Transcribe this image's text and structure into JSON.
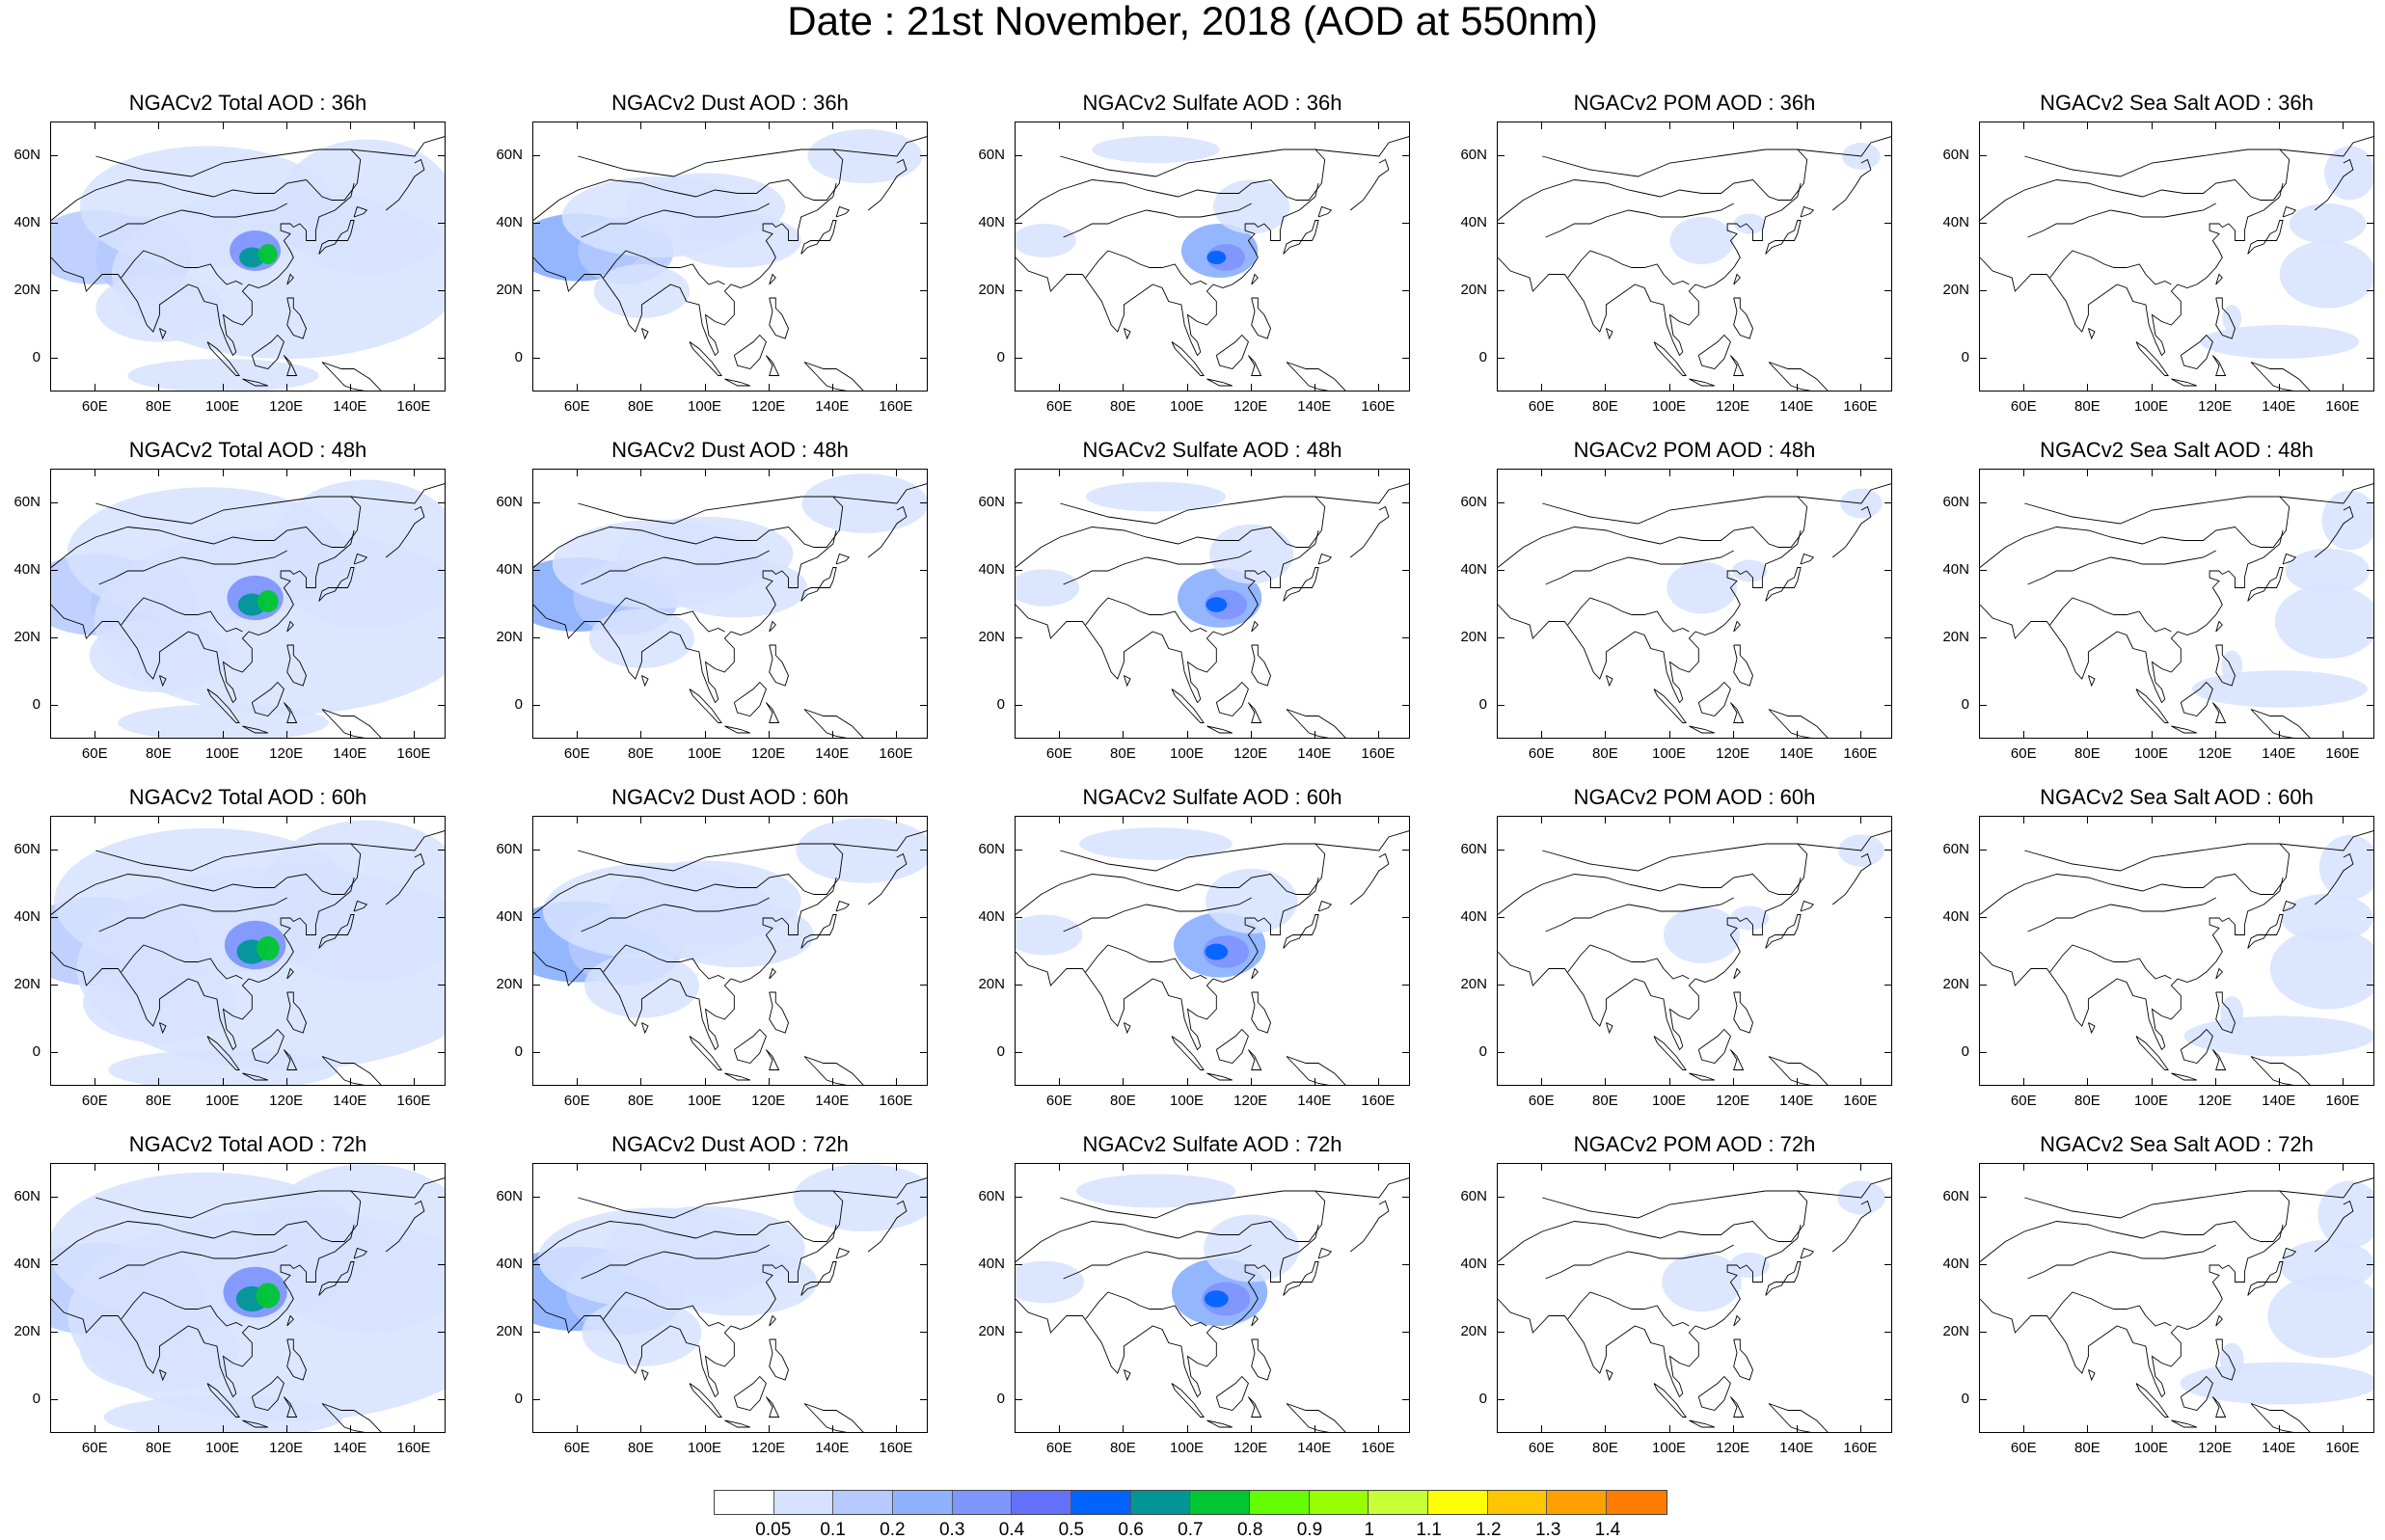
{
  "title": "Date : 21st November, 2018 (AOD at 550nm)",
  "axis": {
    "y_ticks": [
      "60N",
      "40N",
      "20N",
      "0"
    ],
    "x_ticks": [
      "60E",
      "80E",
      "100E",
      "120E",
      "140E",
      "160E"
    ]
  },
  "panels": [
    {
      "title": "NGACv2 Total AOD : 36h",
      "species": "total",
      "hour": 36
    },
    {
      "title": "NGACv2 Dust AOD : 36h",
      "species": "dust",
      "hour": 36
    },
    {
      "title": "NGACv2 Sulfate AOD : 36h",
      "species": "sulfate",
      "hour": 36
    },
    {
      "title": "NGACv2 POM AOD : 36h",
      "species": "pom",
      "hour": 36
    },
    {
      "title": "NGACv2 Sea Salt AOD : 36h",
      "species": "seasalt",
      "hour": 36
    },
    {
      "title": "NGACv2 Total AOD : 48h",
      "species": "total",
      "hour": 48
    },
    {
      "title": "NGACv2 Dust AOD : 48h",
      "species": "dust",
      "hour": 48
    },
    {
      "title": "NGACv2 Sulfate AOD : 48h",
      "species": "sulfate",
      "hour": 48
    },
    {
      "title": "NGACv2 POM AOD : 48h",
      "species": "pom",
      "hour": 48
    },
    {
      "title": "NGACv2 Sea Salt AOD : 48h",
      "species": "seasalt",
      "hour": 48
    },
    {
      "title": "NGACv2 Total AOD : 60h",
      "species": "total",
      "hour": 60
    },
    {
      "title": "NGACv2 Dust AOD : 60h",
      "species": "dust",
      "hour": 60
    },
    {
      "title": "NGACv2 Sulfate AOD : 60h",
      "species": "sulfate",
      "hour": 60
    },
    {
      "title": "NGACv2 POM AOD : 60h",
      "species": "pom",
      "hour": 60
    },
    {
      "title": "NGACv2 Sea Salt AOD : 60h",
      "species": "seasalt",
      "hour": 60
    },
    {
      "title": "NGACv2 Total AOD : 72h",
      "species": "total",
      "hour": 72
    },
    {
      "title": "NGACv2 Dust AOD : 72h",
      "species": "dust",
      "hour": 72
    },
    {
      "title": "NGACv2 Sulfate AOD : 72h",
      "species": "sulfate",
      "hour": 72
    },
    {
      "title": "NGACv2 POM AOD : 72h",
      "species": "pom",
      "hour": 72
    },
    {
      "title": "NGACv2 Sea Salt  AOD : 72h",
      "species": "seasalt",
      "hour": 72
    }
  ],
  "colorbar": {
    "labels": [
      "0.05",
      "0.1",
      "0.2",
      "0.3",
      "0.4",
      "0.5",
      "0.6",
      "0.7",
      "0.8",
      "0.9",
      "1",
      "1.1",
      "1.2",
      "1.3",
      "1.4"
    ],
    "colors": [
      "#ffffff",
      "#d6e2ff",
      "#b5c9ff",
      "#8eb2ff",
      "#7f96ff",
      "#6370f8",
      "#0063ff",
      "#009696",
      "#00c633",
      "#63ff00",
      "#96ff00",
      "#c6ff33",
      "#ffff00",
      "#ffc600",
      "#ffa000",
      "#ff7c00",
      "#ff1900"
    ]
  }
}
